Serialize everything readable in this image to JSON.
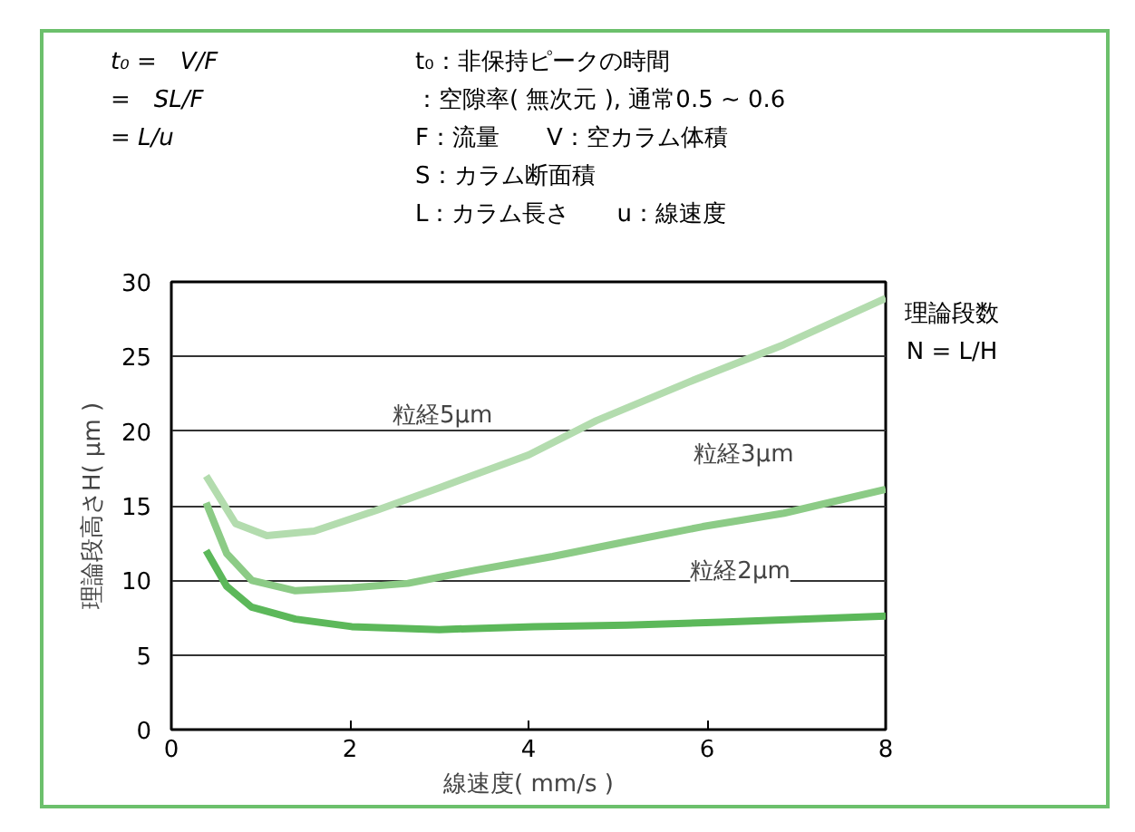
{
  "chart_data": {
    "type": "line",
    "xlabel": "線速度( mm/s )",
    "ylabel": "理論段高さH( μm )",
    "xlim": [
      0,
      8
    ],
    "xticks": [
      0,
      2,
      4,
      6,
      8
    ],
    "ylim": [
      0,
      30
    ],
    "yticks": [
      0,
      5,
      10,
      15,
      20,
      25,
      30
    ],
    "grid": "y",
    "series": [
      {
        "name": "粒経5μm",
        "color": "#b3dcae",
        "x": [
          0.39,
          0.72,
          1.07,
          1.6,
          2.3,
          3.0,
          4.0,
          4.76,
          5.8,
          6.86,
          8
        ],
        "values": [
          17.0,
          13.8,
          13.0,
          13.3,
          14.7,
          16.2,
          18.4,
          20.7,
          23.3,
          25.8,
          28.9
        ]
      },
      {
        "name": "粒経3μm",
        "color": "#8ccb86",
        "x": [
          0.39,
          0.62,
          0.9,
          1.39,
          2.02,
          2.65,
          3.42,
          4.27,
          5.1,
          5.95,
          6.86,
          8
        ],
        "values": [
          15.2,
          11.8,
          10.0,
          9.3,
          9.5,
          9.8,
          10.7,
          11.6,
          12.6,
          13.6,
          14.5,
          16.1
        ]
      },
      {
        "name": "粒経2μm",
        "color": "#5cb85a",
        "x": [
          0.39,
          0.62,
          0.9,
          1.39,
          2.02,
          3.0,
          4.06,
          5.1,
          6.15,
          8
        ],
        "values": [
          12.0,
          9.6,
          8.2,
          7.4,
          6.9,
          6.7,
          6.9,
          7.0,
          7.2,
          7.6
        ]
      }
    ],
    "annotations": [
      "t₀ =　V/F",
      "=　SL/F",
      "= L/u",
      "t₀：非保持ピークの時間",
      "：空隙率( 無次元 ), 通常0.5 ~ 0.6",
      "F：流量　　V：空カラム体積",
      "S：カラム断面積",
      "L：カラム長さ　　u：線速度",
      "理論段数",
      "N = L/H"
    ]
  }
}
